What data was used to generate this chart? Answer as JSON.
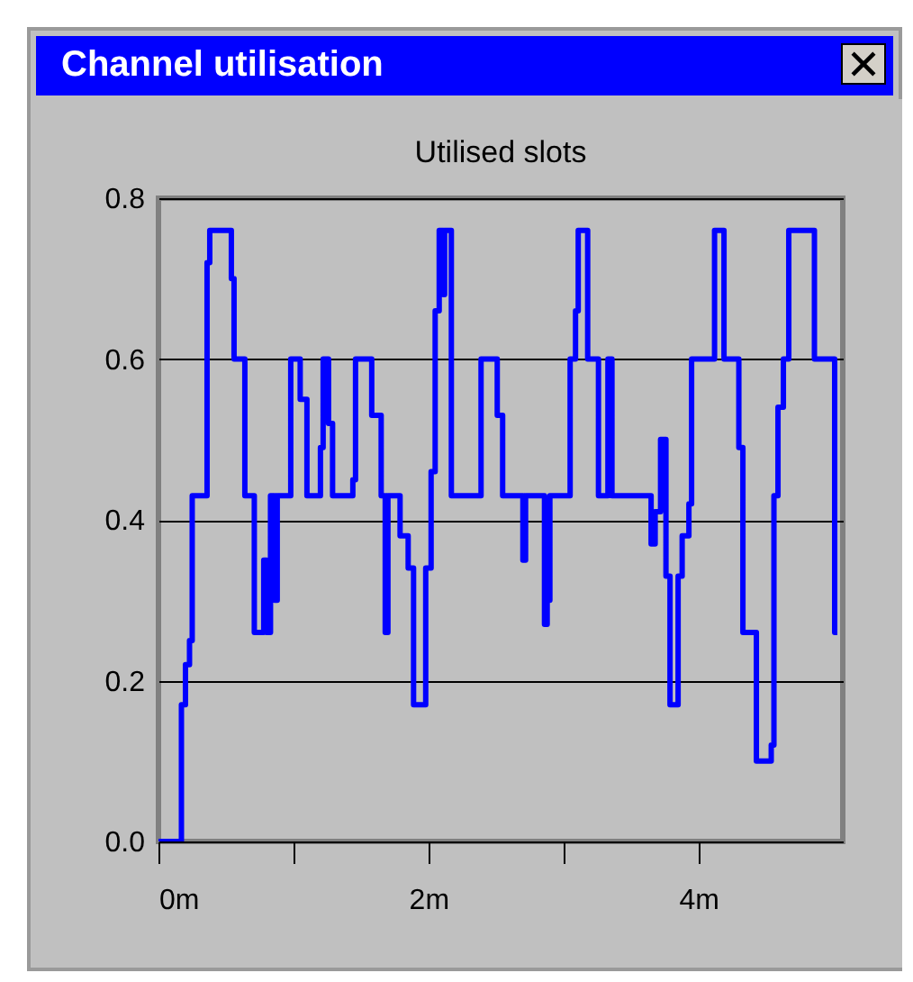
{
  "chart_data": {
    "type": "step",
    "title": "Channel utilisation",
    "subtitle": "Utilised slots",
    "x": [
      0,
      0.17,
      0.2,
      0.23,
      0.25,
      0.36,
      0.38,
      0.54,
      0.56,
      0.64,
      0.71,
      0.78,
      0.8,
      0.83,
      0.86,
      0.88,
      0.98,
      1.05,
      1.1,
      1.2,
      1.22,
      1.26,
      1.29,
      1.44,
      1.46,
      1.58,
      1.65,
      1.68,
      1.7,
      1.79,
      1.85,
      1.89,
      1.98,
      2.02,
      2.05,
      2.08,
      2.11,
      2.12,
      2.17,
      2.39,
      2.51,
      2.55,
      2.7,
      2.72,
      2.86,
      2.88,
      2.9,
      3.05,
      3.09,
      3.11,
      3.18,
      3.26,
      3.33,
      3.36,
      3.65,
      3.68,
      3.72,
      3.76,
      3.79,
      3.85,
      3.88,
      3.93,
      3.95,
      4.12,
      4.19,
      4.3,
      4.33,
      4.43,
      4.54,
      4.56,
      4.59,
      4.63,
      4.67,
      4.86,
      5.01,
      5.03
    ],
    "series": [
      {
        "color": "#0000ff",
        "values": [
          0,
          0.17,
          0.22,
          0.25,
          0.43,
          0.72,
          0.76,
          0.7,
          0.6,
          0.43,
          0.26,
          0.35,
          0.26,
          0.43,
          0.3,
          0.43,
          0.6,
          0.55,
          0.43,
          0.49,
          0.6,
          0.52,
          0.43,
          0.45,
          0.6,
          0.53,
          0.43,
          0.26,
          0.43,
          0.38,
          0.34,
          0.17,
          0.34,
          0.46,
          0.66,
          0.76,
          0.68,
          0.76,
          0.43,
          0.6,
          0.53,
          0.43,
          0.35,
          0.43,
          0.27,
          0.3,
          0.43,
          0.6,
          0.66,
          0.76,
          0.6,
          0.43,
          0.6,
          0.43,
          0.37,
          0.41,
          0.5,
          0.33,
          0.17,
          0.33,
          0.38,
          0.42,
          0.6,
          0.76,
          0.6,
          0.49,
          0.26,
          0.1,
          0.12,
          0.43,
          0.54,
          0.6,
          0.76,
          0.6,
          0.26,
          0.26
        ]
      }
    ],
    "xlim": [
      0,
      5.07
    ],
    "xticks": [
      {
        "value": 0,
        "label": "0m"
      },
      {
        "value": 1,
        "label": null
      },
      {
        "value": 2,
        "label": "2m"
      },
      {
        "value": 3,
        "label": null
      },
      {
        "value": 4,
        "label": "4m"
      }
    ],
    "ylim": [
      0,
      0.8
    ],
    "yticks": [
      {
        "value": 0,
        "label": "0.0"
      },
      {
        "value": 0.2,
        "label": "0.2"
      },
      {
        "value": 0.4,
        "label": "0.4"
      },
      {
        "value": 0.6,
        "label": "0.6"
      },
      {
        "value": 0.8,
        "label": "0.8"
      }
    ],
    "grid": "y"
  }
}
